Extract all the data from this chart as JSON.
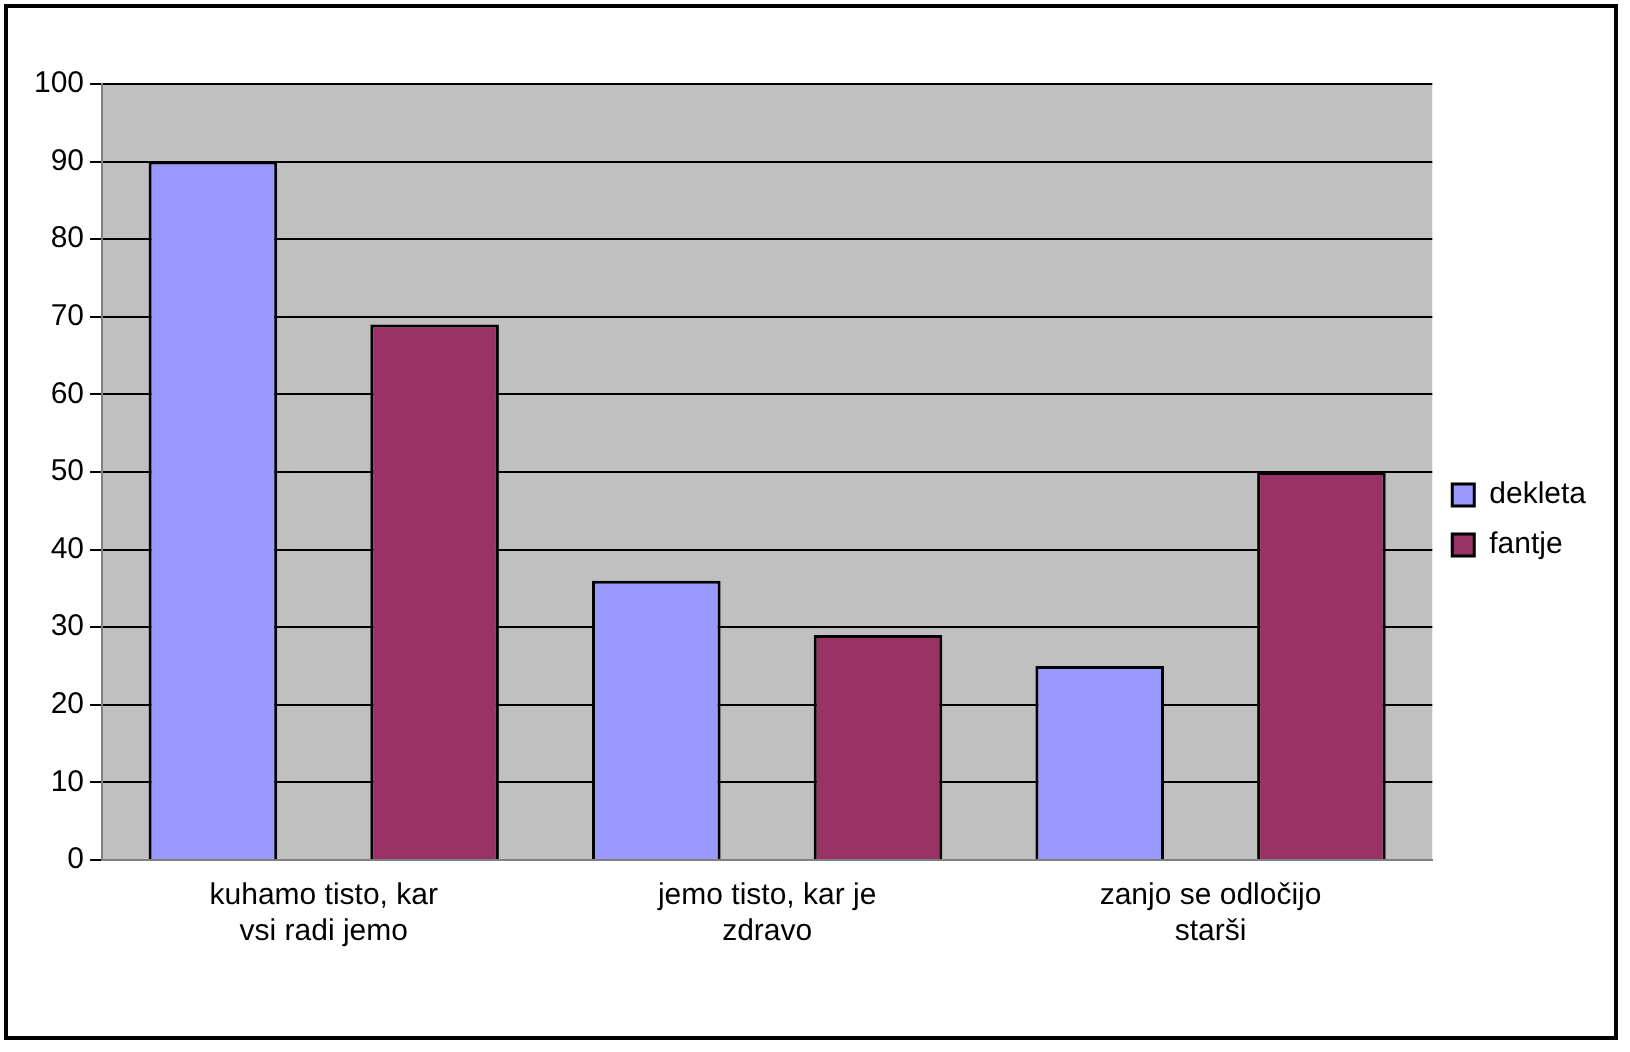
{
  "chart_data": {
    "type": "bar",
    "categories": [
      "kuhamo tisto, kar vsi radi jemo",
      "jemo tisto, kar je zdravo",
      "zanjo se odločijo starši"
    ],
    "series": [
      {
        "name": "dekleta",
        "color": "#9999ff",
        "values": [
          90,
          36,
          25
        ]
      },
      {
        "name": "fantje",
        "color": "#993366",
        "values": [
          69,
          29,
          50
        ]
      }
    ],
    "ylim": [
      0,
      100
    ],
    "yticks": [
      0,
      10,
      20,
      30,
      40,
      50,
      60,
      70,
      80,
      90,
      100
    ],
    "grid": "y",
    "legend": "right"
  }
}
